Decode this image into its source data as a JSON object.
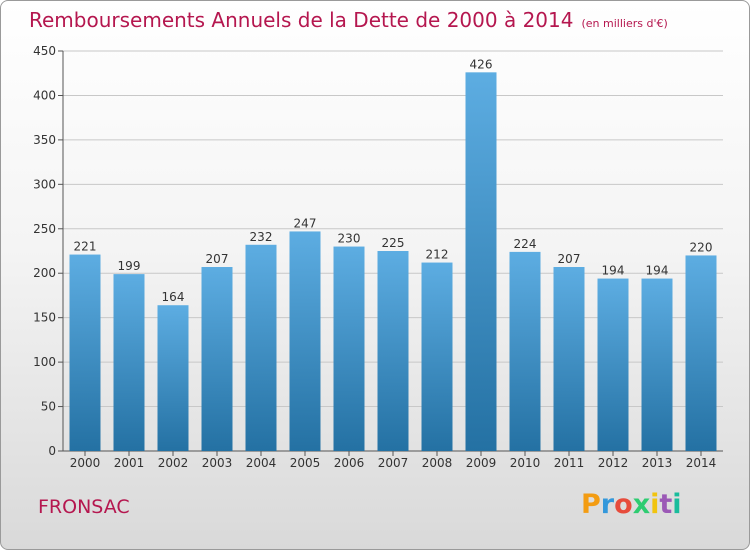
{
  "chart_data": {
    "type": "bar",
    "title": "Remboursements Annuels de la Dette de 2000 à 2014",
    "subtitle": "(en milliers d'€)",
    "categories": [
      "2000",
      "2001",
      "2002",
      "2003",
      "2004",
      "2005",
      "2006",
      "2007",
      "2008",
      "2009",
      "2010",
      "2011",
      "2012",
      "2013",
      "2014"
    ],
    "values": [
      221,
      199,
      164,
      207,
      232,
      247,
      230,
      225,
      212,
      426,
      224,
      207,
      194,
      194,
      220
    ],
    "ylim": [
      0,
      450
    ],
    "yticks": [
      0,
      50,
      100,
      150,
      200,
      250,
      300,
      350,
      400,
      450
    ],
    "xlabel": "",
    "ylabel": "",
    "grid": true
  },
  "city": "FRONSAC",
  "brand": {
    "letters": [
      "P",
      "r",
      "o",
      "x",
      "i",
      "t",
      "i"
    ],
    "colors": [
      "#f39c12",
      "#3498db",
      "#e74c3c",
      "#2ecc71",
      "#f1c40f",
      "#9b59b6",
      "#1abc9c"
    ]
  },
  "colors": {
    "bar_top": "#5dade2",
    "bar_bottom": "#2471a3",
    "title": "#b5174f",
    "grid": "#c8c8c8"
  }
}
